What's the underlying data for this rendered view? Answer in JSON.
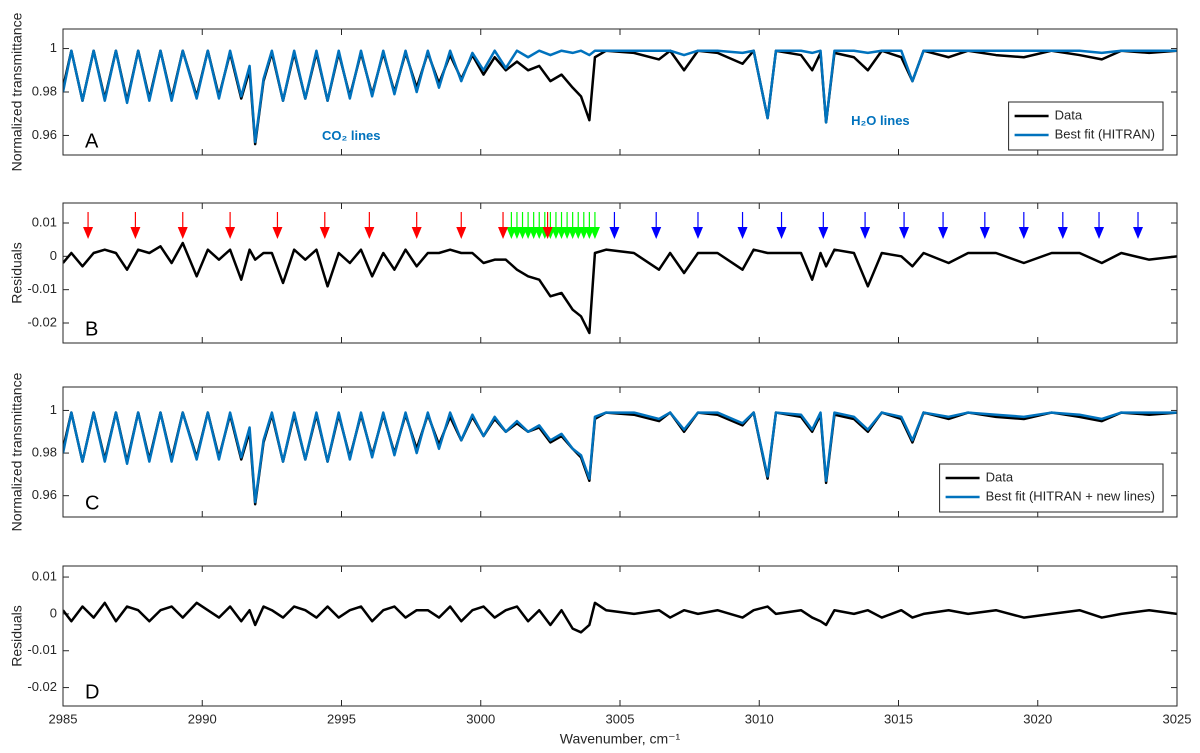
{
  "chart_data": [
    {
      "type": "line",
      "label": "A",
      "ylabel": "Normalized transmittance",
      "x": [
        2985,
        2985.3,
        2985.7,
        2986.1,
        2986.5,
        2986.9,
        2987.3,
        2987.7,
        2988.1,
        2988.5,
        2988.9,
        2989.3,
        2989.8,
        2990.2,
        2990.6,
        2991.0,
        2991.4,
        2991.7,
        2991.9,
        2992.2,
        2992.5,
        2992.9,
        2993.3,
        2993.7,
        2994.1,
        2994.5,
        2994.9,
        2995.3,
        2995.7,
        2996.1,
        2996.5,
        2996.9,
        2997.3,
        2997.7,
        2998.1,
        2998.5,
        2998.9,
        2999.3,
        2999.7,
        3000.1,
        3000.5,
        3000.9,
        3001.3,
        3001.7,
        3002.1,
        3002.5,
        3002.9,
        3003.3,
        3003.6,
        3003.9,
        3004.1,
        3004.5,
        3005.5,
        3006.4,
        3006.8,
        3007.3,
        3007.8,
        3008.5,
        3009.4,
        3009.8,
        3010.3,
        3010.6,
        3011.5,
        3011.9,
        3012.2,
        3012.4,
        3012.7,
        3013.4,
        3013.9,
        3014.4,
        3015.1,
        3015.5,
        3015.9,
        3016.8,
        3017.5,
        3018.5,
        3019.5,
        3020.5,
        3021.5,
        3022.3,
        3023,
        3024,
        3025
      ],
      "series": [
        {
          "name": "Data",
          "color": "#000000",
          "values": [
            0.982,
            0.999,
            0.976,
            0.999,
            0.977,
            0.999,
            0.976,
            0.999,
            0.977,
            0.999,
            0.977,
            0.999,
            0.978,
            0.999,
            0.978,
            0.998,
            0.977,
            0.99,
            0.956,
            0.985,
            0.998,
            0.976,
            0.998,
            0.977,
            0.998,
            0.976,
            0.998,
            0.978,
            0.998,
            0.979,
            0.998,
            0.98,
            0.998,
            0.982,
            0.998,
            0.984,
            0.997,
            0.986,
            0.997,
            0.988,
            0.996,
            0.99,
            0.994,
            0.99,
            0.992,
            0.985,
            0.988,
            0.982,
            0.978,
            0.967,
            0.996,
            0.999,
            0.998,
            0.995,
            0.999,
            0.99,
            0.999,
            0.998,
            0.993,
            0.999,
            0.968,
            0.999,
            0.997,
            0.99,
            0.998,
            0.966,
            0.998,
            0.996,
            0.99,
            0.999,
            0.996,
            0.985,
            0.999,
            0.996,
            0.999,
            0.997,
            0.996,
            0.999,
            0.997,
            0.995,
            0.999,
            0.998,
            0.999
          ]
        },
        {
          "name": "Best fit (HITRAN)",
          "color": "#0072bd",
          "values": [
            0.98,
            0.999,
            0.976,
            0.999,
            0.976,
            0.999,
            0.975,
            0.999,
            0.976,
            0.999,
            0.976,
            0.999,
            0.977,
            0.999,
            0.977,
            0.999,
            0.978,
            0.992,
            0.957,
            0.986,
            0.999,
            0.976,
            0.999,
            0.977,
            0.999,
            0.976,
            0.999,
            0.977,
            0.999,
            0.978,
            0.999,
            0.979,
            0.999,
            0.98,
            0.999,
            0.982,
            0.999,
            0.985,
            0.998,
            0.99,
            0.999,
            0.991,
            0.999,
            0.996,
            0.999,
            0.997,
            0.999,
            0.998,
            0.999,
            0.997,
            0.999,
            0.999,
            0.999,
            0.999,
            0.999,
            0.997,
            0.999,
            0.999,
            0.998,
            0.999,
            0.968,
            0.999,
            0.999,
            0.998,
            0.999,
            0.966,
            0.999,
            0.999,
            0.998,
            0.999,
            0.999,
            0.985,
            0.999,
            0.999,
            0.999,
            0.999,
            0.999,
            0.999,
            0.999,
            0.998,
            0.999,
            0.999,
            0.999
          ]
        }
      ],
      "xlim": [
        2985,
        3025
      ],
      "xticks": [
        2985,
        2990,
        2995,
        3000,
        3005,
        3010,
        3015,
        3020,
        3025
      ],
      "ylim": [
        0.951,
        1.009
      ],
      "yticks": [
        0.96,
        0.98,
        1
      ],
      "legend": "lower right",
      "annotations": [
        {
          "text": "CO₂ lines",
          "color": "#0072bd"
        },
        {
          "text": "H₂O lines",
          "color": "#0072bd"
        }
      ]
    },
    {
      "type": "line",
      "label": "B",
      "ylabel": "Residuals",
      "x": [
        2985,
        2985.3,
        2985.7,
        2986.1,
        2986.5,
        2986.9,
        2987.3,
        2987.7,
        2988.1,
        2988.5,
        2988.9,
        2989.3,
        2989.8,
        2990.2,
        2990.6,
        2991.0,
        2991.4,
        2991.7,
        2991.9,
        2992.2,
        2992.5,
        2992.9,
        2993.3,
        2993.7,
        2994.1,
        2994.5,
        2994.9,
        2995.3,
        2995.7,
        2996.1,
        2996.5,
        2996.9,
        2997.3,
        2997.7,
        2998.1,
        2998.5,
        2998.9,
        2999.3,
        2999.7,
        3000.1,
        3000.5,
        3000.9,
        3001.3,
        3001.7,
        3002.1,
        3002.5,
        3002.9,
        3003.3,
        3003.6,
        3003.9,
        3004.1,
        3004.5,
        3005.5,
        3006.4,
        3006.8,
        3007.3,
        3007.8,
        3008.5,
        3009.4,
        3009.8,
        3010.3,
        3010.6,
        3011.5,
        3011.9,
        3012.2,
        3012.4,
        3012.7,
        3013.4,
        3013.9,
        3014.4,
        3015.1,
        3015.5,
        3015.9,
        3016.8,
        3017.5,
        3018.5,
        3019.5,
        3020.5,
        3021.5,
        3022.3,
        3023,
        3024,
        3025
      ],
      "series": [
        {
          "color": "#000000",
          "values": [
            -0.002,
            0.001,
            -0.003,
            0.001,
            0.002,
            0.001,
            -0.004,
            0.002,
            0.001,
            0.003,
            -0.002,
            0.004,
            -0.006,
            0.002,
            -0.001,
            0.002,
            -0.007,
            0.002,
            -0.001,
            0.001,
            0.001,
            -0.008,
            0.002,
            -0.001,
            0.002,
            -0.009,
            0.001,
            -0.002,
            0.002,
            -0.006,
            0.001,
            -0.004,
            0.002,
            -0.003,
            0.001,
            0.001,
            0.002,
            0.001,
            0.001,
            -0.002,
            -0.001,
            -0.001,
            -0.004,
            -0.006,
            -0.007,
            -0.012,
            -0.011,
            -0.016,
            -0.018,
            -0.023,
            0.001,
            0.002,
            0.001,
            -0.004,
            0.001,
            -0.005,
            0.001,
            0.001,
            -0.004,
            0.002,
            0.001,
            0.001,
            0.001,
            -0.007,
            0.001,
            -0.003,
            0.002,
            0.001,
            -0.009,
            0.001,
            0,
            -0.003,
            0.001,
            -0.002,
            0.001,
            0.001,
            -0.002,
            0.001,
            0.001,
            -0.002,
            0.001,
            -0.001,
            0
          ]
        }
      ],
      "xlim": [
        2985,
        3025
      ],
      "xticks": [
        2985,
        2990,
        2995,
        3000,
        3005,
        3010,
        3015,
        3020,
        3025
      ],
      "ylim": [
        -0.026,
        0.016
      ],
      "yticks": [
        -0.02,
        -0.01,
        0,
        0.01
      ],
      "arrows": [
        {
          "color": "#00ff00",
          "x": [
            3001.1,
            3001.3,
            3001.5,
            3001.7,
            3001.9,
            3002.1,
            3002.3,
            3002.5,
            3002.7,
            3002.9,
            3003.1,
            3003.3,
            3003.5,
            3003.7,
            3003.9,
            3004.1
          ]
        },
        {
          "color": "#ff0000",
          "x": [
            2985.9,
            2987.6,
            2989.3,
            2991.0,
            2992.7,
            2994.4,
            2996.0,
            2997.7,
            2999.3,
            3000.8,
            3002.4
          ]
        },
        {
          "color": "#0000ff",
          "x": [
            3004.8,
            3006.3,
            3007.8,
            3009.4,
            3010.8,
            3012.3,
            3013.8,
            3015.2,
            3016.6,
            3018.1,
            3019.5,
            3020.9,
            3022.2,
            3023.6
          ]
        }
      ]
    },
    {
      "type": "line",
      "label": "C",
      "ylabel": "Normalized transmittance",
      "x": [
        2985,
        2985.3,
        2985.7,
        2986.1,
        2986.5,
        2986.9,
        2987.3,
        2987.7,
        2988.1,
        2988.5,
        2988.9,
        2989.3,
        2989.8,
        2990.2,
        2990.6,
        2991.0,
        2991.4,
        2991.7,
        2991.9,
        2992.2,
        2992.5,
        2992.9,
        2993.3,
        2993.7,
        2994.1,
        2994.5,
        2994.9,
        2995.3,
        2995.7,
        2996.1,
        2996.5,
        2996.9,
        2997.3,
        2997.7,
        2998.1,
        2998.5,
        2998.9,
        2999.3,
        2999.7,
        3000.1,
        3000.5,
        3000.9,
        3001.3,
        3001.7,
        3002.1,
        3002.5,
        3002.9,
        3003.3,
        3003.6,
        3003.9,
        3004.1,
        3004.5,
        3005.5,
        3006.4,
        3006.8,
        3007.3,
        3007.8,
        3008.5,
        3009.4,
        3009.8,
        3010.3,
        3010.6,
        3011.5,
        3011.9,
        3012.2,
        3012.4,
        3012.7,
        3013.4,
        3013.9,
        3014.4,
        3015.1,
        3015.5,
        3015.9,
        3016.8,
        3017.5,
        3018.5,
        3019.5,
        3020.5,
        3021.5,
        3022.3,
        3023,
        3024,
        3025
      ],
      "series": [
        {
          "name": "Data",
          "color": "#000000",
          "values": [
            0.982,
            0.999,
            0.976,
            0.999,
            0.977,
            0.999,
            0.976,
            0.999,
            0.977,
            0.999,
            0.977,
            0.999,
            0.978,
            0.999,
            0.978,
            0.998,
            0.977,
            0.99,
            0.956,
            0.985,
            0.998,
            0.976,
            0.998,
            0.977,
            0.998,
            0.976,
            0.998,
            0.978,
            0.998,
            0.979,
            0.998,
            0.98,
            0.998,
            0.982,
            0.998,
            0.984,
            0.997,
            0.986,
            0.997,
            0.988,
            0.996,
            0.99,
            0.994,
            0.99,
            0.992,
            0.985,
            0.988,
            0.982,
            0.978,
            0.967,
            0.996,
            0.999,
            0.998,
            0.995,
            0.999,
            0.99,
            0.999,
            0.998,
            0.993,
            0.999,
            0.968,
            0.999,
            0.997,
            0.99,
            0.998,
            0.966,
            0.998,
            0.996,
            0.99,
            0.999,
            0.996,
            0.985,
            0.999,
            0.996,
            0.999,
            0.997,
            0.996,
            0.999,
            0.997,
            0.995,
            0.999,
            0.998,
            0.999
          ]
        },
        {
          "name": "Best fit (HITRAN + new lines)",
          "color": "#0072bd",
          "values": [
            0.98,
            0.999,
            0.976,
            0.999,
            0.976,
            0.999,
            0.975,
            0.999,
            0.976,
            0.999,
            0.976,
            0.999,
            0.977,
            0.999,
            0.977,
            0.999,
            0.978,
            0.992,
            0.957,
            0.986,
            0.999,
            0.976,
            0.999,
            0.977,
            0.999,
            0.976,
            0.999,
            0.977,
            0.999,
            0.978,
            0.999,
            0.979,
            0.999,
            0.98,
            0.999,
            0.982,
            0.999,
            0.986,
            0.998,
            0.988,
            0.997,
            0.99,
            0.995,
            0.99,
            0.993,
            0.986,
            0.989,
            0.982,
            0.979,
            0.968,
            0.997,
            0.999,
            0.999,
            0.996,
            0.999,
            0.991,
            0.999,
            0.999,
            0.994,
            0.999,
            0.969,
            0.999,
            0.998,
            0.991,
            0.999,
            0.967,
            0.999,
            0.997,
            0.991,
            0.999,
            0.997,
            0.986,
            0.999,
            0.997,
            0.999,
            0.998,
            0.997,
            0.999,
            0.998,
            0.996,
            0.999,
            0.999,
            0.999
          ]
        }
      ],
      "xlim": [
        2985,
        3025
      ],
      "xticks": [
        2985,
        2990,
        2995,
        3000,
        3005,
        3010,
        3015,
        3020,
        3025
      ],
      "ylim": [
        0.95,
        1.011
      ],
      "yticks": [
        0.96,
        0.98,
        1
      ],
      "legend": "lower right"
    },
    {
      "type": "line",
      "label": "D",
      "ylabel": "Residuals",
      "xlabel": "Wavenumber, cm⁻¹",
      "x": [
        2985,
        2985.3,
        2985.7,
        2986.1,
        2986.5,
        2986.9,
        2987.3,
        2987.7,
        2988.1,
        2988.5,
        2988.9,
        2989.3,
        2989.8,
        2990.2,
        2990.6,
        2991.0,
        2991.4,
        2991.7,
        2991.9,
        2992.2,
        2992.5,
        2992.9,
        2993.3,
        2993.7,
        2994.1,
        2994.5,
        2994.9,
        2995.3,
        2995.7,
        2996.1,
        2996.5,
        2996.9,
        2997.3,
        2997.7,
        2998.1,
        2998.5,
        2998.9,
        2999.3,
        2999.7,
        3000.1,
        3000.5,
        3000.9,
        3001.3,
        3001.7,
        3002.1,
        3002.5,
        3002.9,
        3003.3,
        3003.6,
        3003.9,
        3004.1,
        3004.5,
        3005.5,
        3006.4,
        3006.8,
        3007.3,
        3007.8,
        3008.5,
        3009.4,
        3009.8,
        3010.3,
        3010.6,
        3011.5,
        3011.9,
        3012.2,
        3012.4,
        3012.7,
        3013.4,
        3013.9,
        3014.4,
        3015.1,
        3015.5,
        3015.9,
        3016.8,
        3017.5,
        3018.5,
        3019.5,
        3020.5,
        3021.5,
        3022.3,
        3023,
        3024,
        3025
      ],
      "series": [
        {
          "color": "#000000",
          "values": [
            0.001,
            -0.002,
            0.002,
            -0.001,
            0.003,
            -0.002,
            0.002,
            0.001,
            -0.002,
            0.001,
            0.002,
            -0.001,
            0.003,
            0.001,
            -0.001,
            0.002,
            -0.002,
            0.001,
            -0.003,
            0.002,
            0.001,
            -0.001,
            0.002,
            0.001,
            -0.001,
            0.002,
            -0.001,
            0.001,
            0.002,
            -0.002,
            0.001,
            0.002,
            -0.001,
            0.001,
            0.001,
            -0.001,
            0.002,
            -0.002,
            0.001,
            0.002,
            -0.001,
            0.001,
            0.002,
            -0.002,
            0.001,
            -0.003,
            0.001,
            -0.004,
            -0.005,
            -0.003,
            0.003,
            0.001,
            0,
            0.001,
            -0.001,
            0.001,
            0,
            0.001,
            -0.001,
            0.001,
            0.002,
            0,
            0.001,
            -0.001,
            -0.002,
            -0.003,
            0.001,
            0,
            0.001,
            -0.001,
            0.001,
            -0.001,
            0,
            0.001,
            0,
            0.001,
            -0.001,
            0,
            0.001,
            -0.001,
            0,
            0.001,
            0
          ]
        }
      ],
      "xlim": [
        2985,
        3025
      ],
      "xticks": [
        2985,
        2990,
        2995,
        3000,
        3005,
        3010,
        3015,
        3020,
        3025
      ],
      "ylim": [
        -0.025,
        0.013
      ],
      "yticks": [
        -0.02,
        -0.01,
        0,
        0.01
      ]
    }
  ]
}
